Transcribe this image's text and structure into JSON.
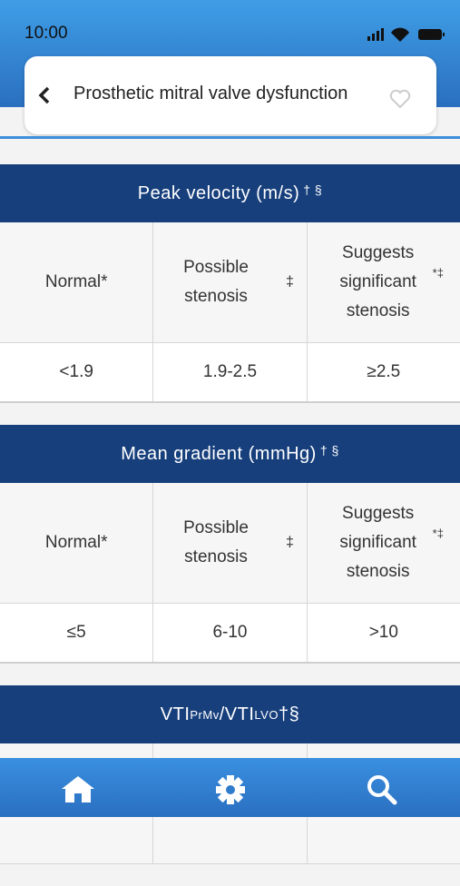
{
  "status": {
    "time": "10:00"
  },
  "header": {
    "title": "Prosthetic mitral valve dysfunction"
  },
  "sections": [
    {
      "title": "Peak velocity (m/s)",
      "title_mark": "† §",
      "columns": [
        {
          "label": "Normal*"
        },
        {
          "label": "Possible stenosis",
          "mark": "‡"
        },
        {
          "label": "Suggests significant stenosis",
          "mark": "*‡"
        }
      ],
      "values": [
        "<1.9",
        "1.9-2.5",
        "≥2.5"
      ]
    },
    {
      "title": "Mean gradient (mmHg)",
      "title_mark": "† §",
      "columns": [
        {
          "label": "Normal*"
        },
        {
          "label": "Possible stenosis",
          "mark": "‡"
        },
        {
          "label": "Suggests significant stenosis",
          "mark": "*‡"
        }
      ],
      "values": [
        "≤5",
        "6-10",
        ">10"
      ]
    },
    {
      "title_parts": [
        "VTI",
        "PrMv",
        "/VTI",
        "LVO",
        "†§"
      ]
    }
  ]
}
